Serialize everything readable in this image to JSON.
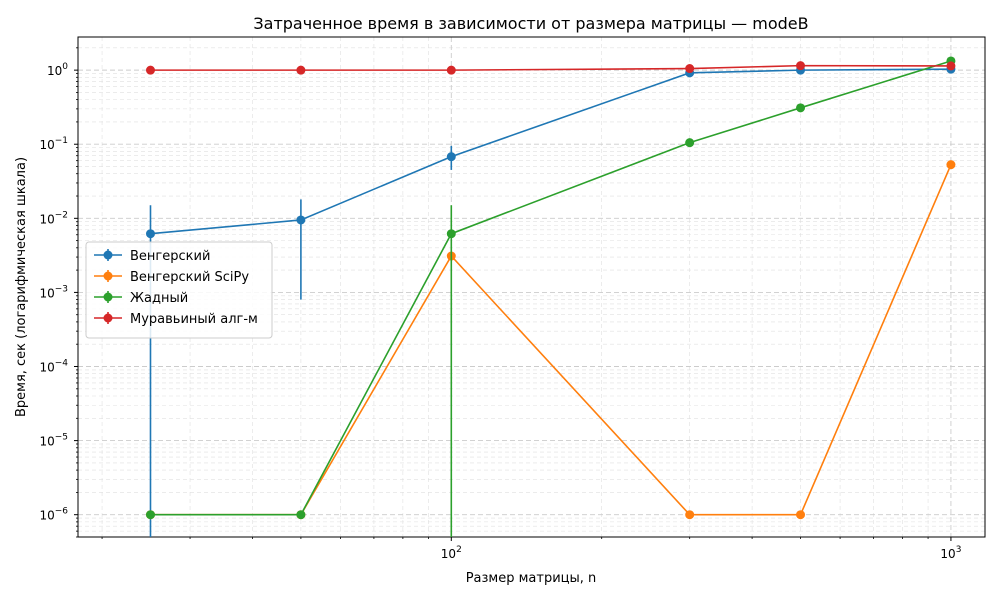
{
  "chart_data": {
    "type": "line",
    "title": "Затраченное время в зависимости от размера матрицы — modeB",
    "xlabel": "Размер матрицы, n",
    "ylabel": "Время, сек (логарифмическая шкала)",
    "xscale": "log",
    "yscale": "log",
    "xlim": [
      17.9,
      1170
    ],
    "ylim": [
      5e-07,
      2.8
    ],
    "grid": true,
    "legend_position": "center-left",
    "x_tick_labels": [
      {
        "value": 100,
        "text": "10^2"
      },
      {
        "value": 1000,
        "text": "10^3"
      }
    ],
    "y_tick_labels": [
      {
        "value": 1e-06,
        "text": "10^−6"
      },
      {
        "value": 1e-05,
        "text": "10^−5"
      },
      {
        "value": 0.0001,
        "text": "10^−4"
      },
      {
        "value": 0.001,
        "text": "10^−3"
      },
      {
        "value": 0.01,
        "text": "10^−2"
      },
      {
        "value": 0.1,
        "text": "10^−1"
      },
      {
        "value": 1,
        "text": "10^0"
      }
    ],
    "series": [
      {
        "name": "Венгерский",
        "color": "#1f77b4",
        "points": [
          {
            "x": 25,
            "y": 0.0062,
            "err_low": 1e-07,
            "err_high": 0.015
          },
          {
            "x": 50,
            "y": 0.0095,
            "err_low": 0.0008,
            "err_high": 0.018
          },
          {
            "x": 100,
            "y": 0.068,
            "err_low": 0.045,
            "err_high": 0.095
          },
          {
            "x": 300,
            "y": 0.92
          },
          {
            "x": 500,
            "y": 1.0
          },
          {
            "x": 1000,
            "y": 1.03
          }
        ]
      },
      {
        "name": "Венгерский SciPy",
        "color": "#ff7f0e",
        "points": [
          {
            "x": 25,
            "y": 1e-06
          },
          {
            "x": 50,
            "y": 1e-06
          },
          {
            "x": 100,
            "y": 0.0031
          },
          {
            "x": 300,
            "y": 1e-06
          },
          {
            "x": 500,
            "y": 1e-06
          },
          {
            "x": 1000,
            "y": 0.053
          }
        ]
      },
      {
        "name": "Жадный",
        "color": "#2ca02c",
        "points": [
          {
            "x": 25,
            "y": 1e-06
          },
          {
            "x": 50,
            "y": 1e-06
          },
          {
            "x": 100,
            "y": 0.0062,
            "err_low": 1e-07,
            "err_high": 0.015
          },
          {
            "x": 300,
            "y": 0.105
          },
          {
            "x": 500,
            "y": 0.31
          },
          {
            "x": 1000,
            "y": 1.33
          }
        ]
      },
      {
        "name": "Муравьиный алг-м",
        "color": "#d62728",
        "points": [
          {
            "x": 25,
            "y": 1.0
          },
          {
            "x": 50,
            "y": 1.0
          },
          {
            "x": 100,
            "y": 1.0
          },
          {
            "x": 300,
            "y": 1.05
          },
          {
            "x": 500,
            "y": 1.15
          },
          {
            "x": 1000,
            "y": 1.14
          }
        ]
      }
    ]
  }
}
